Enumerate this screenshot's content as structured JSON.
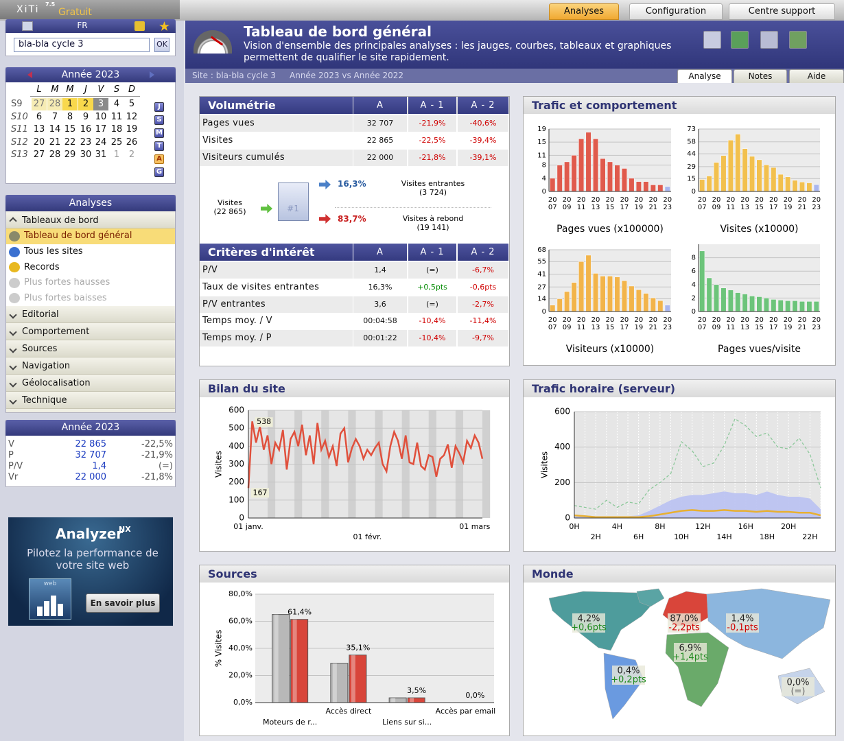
{
  "topbar": {
    "logo": "XiTi",
    "version": "7.5",
    "edition": "Gratuit",
    "tabs": [
      "Analyses",
      "Configuration",
      "Centre support"
    ]
  },
  "sidebar": {
    "language": "FR",
    "site_select": "bla-bla cycle 3",
    "ok": "OK",
    "calendar": {
      "title": "Année 2023",
      "weekdays": [
        "L",
        "M",
        "M",
        "J",
        "V",
        "S",
        "D"
      ],
      "weeks": [
        {
          "label": "S9",
          "days": [
            "27",
            "28",
            "1",
            "2",
            "3",
            "4",
            "5"
          ]
        },
        {
          "label": "S10",
          "days": [
            "6",
            "7",
            "8",
            "9",
            "10",
            "11",
            "12"
          ]
        },
        {
          "label": "S11",
          "days": [
            "13",
            "14",
            "15",
            "16",
            "17",
            "18",
            "19"
          ]
        },
        {
          "label": "S12",
          "days": [
            "20",
            "21",
            "22",
            "23",
            "24",
            "25",
            "26"
          ]
        },
        {
          "label": "S13",
          "days": [
            "27",
            "28",
            "29",
            "30",
            "31",
            "1",
            "2"
          ]
        }
      ],
      "shortcuts": [
        "J",
        "S",
        "M",
        "T",
        "A",
        "G"
      ]
    },
    "menu": {
      "title": "Analyses",
      "groups": [
        {
          "label": "Tableaux de bord",
          "items": [
            "Tableau de bord général",
            "Tous les sites",
            "Records",
            "Plus fortes hausses",
            "Plus fortes baisses"
          ]
        },
        {
          "label": "Editorial"
        },
        {
          "label": "Comportement"
        },
        {
          "label": "Sources"
        },
        {
          "label": "Navigation"
        },
        {
          "label": "Géolocalisation"
        },
        {
          "label": "Technique"
        }
      ]
    },
    "summary": {
      "title": "Année 2023",
      "rows": [
        [
          "V",
          "22 865",
          "-22,5%"
        ],
        [
          "P",
          "32 707",
          "-21,9%"
        ],
        [
          "P/V",
          "1,4",
          "(=)"
        ],
        [
          "Vr",
          "22 000",
          "-21,8%"
        ]
      ]
    },
    "ad": {
      "brand": "Analyzer",
      "sup": "NX",
      "tagline": "Pilotez la performance de votre site web",
      "button": "En savoir plus",
      "badge": "web"
    }
  },
  "header": {
    "title": "Tableau de bord général",
    "subtitle": "Vision d'ensemble des principales analyses : les jauges, courbes, tableaux et graphiques permettent de qualifier le site rapidement.",
    "site": "Site : bla-bla cycle 3",
    "period": "Année 2023 vs Année 2022",
    "tabs": [
      "Analyse",
      "Notes",
      "Aide"
    ]
  },
  "volumetrie": {
    "title": "Volumétrie",
    "columns": [
      "A",
      "A - 1",
      "A - 2"
    ],
    "rows": [
      [
        "Pages vues",
        "32 707",
        "-21,9%",
        "-40,6%"
      ],
      [
        "Visites",
        "22 865",
        "-22,5%",
        "-39,4%"
      ],
      [
        "Visiteurs cumulés",
        "22 000",
        "-21,8%",
        "-39,1%"
      ]
    ]
  },
  "funnel": {
    "source_label": "Visites",
    "source_value": "(22 865)",
    "icon": "#1",
    "entrant_pct": "16,3%",
    "entrant_label": "Visites entrantes",
    "entrant_value": "(3 724)",
    "rebond_pct": "83,7%",
    "rebond_label": "Visites à rebond",
    "rebond_value": "(19 141)"
  },
  "criteres": {
    "title": "Critères d'intérêt",
    "columns": [
      "A",
      "A - 1",
      "A - 2"
    ],
    "rows": [
      [
        "P/V",
        "1,4",
        "(=)",
        "-6,7%"
      ],
      [
        "Taux de visites entrantes",
        "16,3%",
        "+0,5pts",
        "-0,6pts"
      ],
      [
        "P/V entrantes",
        "3,6",
        "(=)",
        "-2,7%"
      ],
      [
        "Temps moy. / V",
        "00:04:58",
        "-10,4%",
        "-11,4%"
      ],
      [
        "Temps moy. / P",
        "00:01:22",
        "-10,4%",
        "-9,7%"
      ]
    ]
  },
  "trafic": {
    "title": "Trafic et comportement",
    "charts": [
      {
        "type": "bar",
        "title": "Pages vues (x100000)",
        "color": "#e05a4c",
        "last_color": "#a9b6ee",
        "ylim": [
          0,
          19
        ],
        "yticks": [
          0,
          4,
          8,
          11,
          15,
          19
        ],
        "categories": [
          "20 07",
          null,
          "20 09",
          null,
          "20 11",
          null,
          "20 13",
          null,
          "20 15",
          null,
          "20 17",
          null,
          "20 19",
          null,
          "20 21",
          null,
          "20 23"
        ],
        "values": [
          4,
          8,
          9,
          11,
          16,
          18,
          16,
          10,
          9,
          8,
          7,
          4,
          3,
          3,
          2,
          2,
          1.5
        ]
      },
      {
        "type": "bar",
        "title": "Visites (x10000)",
        "color": "#f2c04e",
        "last_color": "#a9b6ee",
        "ylim": [
          0,
          73
        ],
        "yticks": [
          0,
          15,
          29,
          44,
          58,
          73
        ],
        "categories": [
          "20 07",
          null,
          "20 09",
          null,
          "20 11",
          null,
          "20 13",
          null,
          "20 15",
          null,
          "20 17",
          null,
          "20 19",
          null,
          "20 21",
          null,
          "20 23"
        ],
        "values": [
          14,
          18,
          34,
          42,
          60,
          67,
          50,
          41,
          37,
          31,
          28,
          20,
          17,
          13,
          11,
          10,
          8
        ]
      },
      {
        "type": "bar",
        "title": "Visiteurs (x10000)",
        "color": "#f2b44a",
        "last_color": "#a9b6ee",
        "ylim": [
          0,
          68
        ],
        "yticks": [
          0,
          14,
          27,
          41,
          55,
          68
        ],
        "categories": [
          "20 07",
          null,
          "20 09",
          null,
          "20 11",
          null,
          "20 13",
          null,
          "20 15",
          null,
          "20 17",
          null,
          "20 19",
          null,
          "20 21",
          null,
          "20 23"
        ],
        "values": [
          7,
          14,
          22,
          32,
          55,
          62,
          42,
          39,
          39,
          38,
          34,
          28,
          24,
          20,
          15,
          12,
          7
        ]
      },
      {
        "type": "bar",
        "title": "Pages vues/visite",
        "color": "#6cc47a",
        "last_color": "#6cc47a",
        "ylim": [
          0,
          10
        ],
        "yticks": [
          0,
          2,
          4,
          6,
          8
        ],
        "categories": [
          "20 07",
          null,
          "20 09",
          null,
          "20 11",
          null,
          "20 13",
          null,
          "20 15",
          null,
          "20 17",
          null,
          "20 19",
          null,
          "20 21",
          null,
          "20 23"
        ],
        "values": [
          9,
          5,
          4,
          3.5,
          3.2,
          2.8,
          2.6,
          2.3,
          2.2,
          2,
          1.8,
          1.7,
          1.6,
          1.6,
          1.5,
          1.5,
          1.5
        ]
      }
    ]
  },
  "bilan": {
    "type": "line",
    "title": "Bilan du site",
    "y_label": "Visites",
    "color": "#e0503c",
    "ylim": [
      0,
      600
    ],
    "yticks": [
      0,
      100,
      200,
      300,
      400,
      500,
      600
    ],
    "categories": [
      "01 janv.",
      null,
      null,
      null,
      null,
      null,
      null,
      null,
      null,
      null,
      null,
      null,
      null,
      null,
      null,
      null,
      null,
      null,
      null,
      null,
      null,
      null,
      null,
      null,
      null,
      null,
      null,
      null,
      null,
      null,
      null,
      "01 févr.",
      null,
      null,
      null,
      null,
      null,
      null,
      null,
      null,
      null,
      null,
      null,
      null,
      null,
      null,
      null,
      null,
      null,
      null,
      null,
      null,
      null,
      null,
      null,
      null,
      null,
      null,
      null,
      "01 mars",
      null,
      null
    ],
    "values": [
      167,
      538,
      420,
      510,
      380,
      460,
      300,
      420,
      380,
      490,
      270,
      440,
      480,
      400,
      520,
      350,
      460,
      300,
      530,
      380,
      430,
      340,
      400,
      290,
      470,
      500,
      310,
      390,
      440,
      400,
      330,
      380,
      350,
      390,
      420,
      300,
      260,
      400,
      480,
      430,
      330,
      460,
      310,
      300,
      420,
      290,
      270,
      350,
      340,
      230,
      330,
      350,
      410,
      280,
      400,
      360,
      310,
      430,
      390,
      460,
      420,
      330
    ],
    "value_labels": [
      "167",
      "538",
      null,
      null,
      null,
      null,
      null,
      null,
      null,
      null,
      null,
      null,
      null,
      null,
      null,
      null,
      null,
      null,
      null,
      null,
      null,
      null,
      null,
      null,
      null,
      null,
      null,
      null,
      null,
      null,
      null,
      null,
      null,
      null,
      null,
      null,
      null,
      null,
      null,
      null,
      null,
      null,
      null,
      null,
      null,
      null,
      null,
      null,
      null,
      null,
      null,
      null,
      null,
      null,
      null,
      null,
      null,
      null,
      null,
      null,
      null,
      null
    ]
  },
  "horaire": {
    "type": "line",
    "title": "Trafic horaire (serveur)",
    "y_label": "Visites",
    "ylim": [
      0,
      600
    ],
    "yticks": [
      0,
      200,
      400,
      600
    ],
    "categories": [
      "0H",
      null,
      "2H",
      null,
      "4H",
      null,
      "6H",
      null,
      "8H",
      null,
      "10H",
      null,
      "12H",
      null,
      "14H",
      null,
      "16H",
      null,
      "18H",
      null,
      "20H",
      null,
      "22H",
      null
    ],
    "series": [
      {
        "style": "area",
        "color": "#b9c1f2",
        "values": [
          20,
          15,
          10,
          10,
          10,
          10,
          15,
          40,
          70,
          100,
          120,
          130,
          130,
          140,
          150,
          140,
          140,
          130,
          150,
          130,
          120,
          120,
          110,
          50
        ]
      },
      {
        "style": "dashed",
        "color": "#8cc89a",
        "values": [
          70,
          60,
          50,
          100,
          60,
          90,
          80,
          160,
          200,
          250,
          430,
          380,
          290,
          310,
          410,
          560,
          520,
          460,
          480,
          400,
          390,
          450,
          360,
          170
        ]
      },
      {
        "style": "solid",
        "color": "#e8b030",
        "values": [
          15,
          10,
          5,
          5,
          5,
          5,
          5,
          10,
          20,
          30,
          40,
          45,
          40,
          40,
          45,
          40,
          40,
          35,
          40,
          35,
          35,
          30,
          30,
          15
        ]
      }
    ]
  },
  "sources": {
    "type": "bar",
    "title": "Sources",
    "y_label": "% Visites",
    "ylim": [
      0,
      80
    ],
    "yticks": [
      {
        "value": 0,
        "label": "0,0%"
      },
      {
        "value": 20,
        "label": "20,0%"
      },
      {
        "value": 40,
        "label": "40,0%"
      },
      {
        "value": 60,
        "label": "60,0%"
      },
      {
        "value": 80,
        "label": "80,0%"
      }
    ],
    "categories": [
      "Moteurs de r...",
      "Accès direct",
      "Liens sur si...",
      "Accès par email"
    ],
    "series": [
      {
        "color": "#b8b8b8",
        "values": [
          65,
          29,
          3.5,
          0
        ]
      },
      {
        "color": "#d8453a",
        "values": [
          61.4,
          35.1,
          3.5,
          0.0
        ],
        "value_labels": [
          "61,4%",
          "35,1%",
          "3,5%",
          "0,0%"
        ]
      }
    ]
  },
  "monde": {
    "title": "Monde",
    "regions": [
      {
        "value": "4,2%",
        "change": "+0,6pts"
      },
      {
        "value": "87,0%",
        "change": "-2,2pts"
      },
      {
        "value": "1,4%",
        "change": "-0,1pts"
      },
      {
        "value": "6,9%",
        "change": "+1,4pts"
      },
      {
        "value": "0,4%",
        "change": "+0,2pts"
      },
      {
        "value": "0,0%",
        "change": "(=)"
      }
    ]
  }
}
